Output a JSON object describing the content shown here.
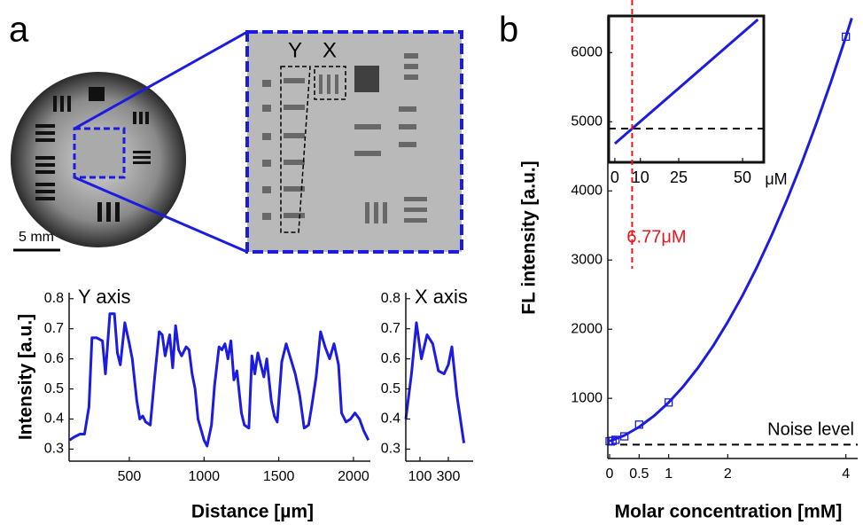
{
  "figure": {
    "panel_a": "a",
    "panel_b": "b",
    "scale_bar": "5 mm",
    "roi_y": "Y",
    "roi_x": "X"
  },
  "chart_data": [
    {
      "type": "line",
      "annotation": "Y axis",
      "xlabel": "Distance [µm]",
      "ylabel": "Intensity [a.u.]",
      "xlim": [
        97,
        2113
      ],
      "ylim": [
        0.26,
        0.82
      ],
      "xticks": [
        500,
        1000,
        1500,
        2000
      ],
      "yticks": [
        0.3,
        0.4,
        0.5,
        0.6,
        0.7,
        0.8
      ],
      "series": [
        {
          "color": "#1c1ce0",
          "x": [
            100,
            130,
            170,
            200,
            230,
            250,
            280,
            320,
            340,
            370,
            400,
            420,
            440,
            470,
            500,
            520,
            550,
            570,
            590,
            610,
            640,
            670,
            700,
            720,
            740,
            770,
            790,
            810,
            830,
            850,
            880,
            900,
            920,
            940,
            960,
            1000,
            1020,
            1050,
            1070,
            1100,
            1120,
            1140,
            1160,
            1180,
            1200,
            1220,
            1250,
            1270,
            1300,
            1320,
            1340,
            1360,
            1380,
            1400,
            1420,
            1450,
            1470,
            1490,
            1520,
            1550,
            1580,
            1610,
            1640,
            1670,
            1700,
            1720,
            1750,
            1780,
            1810,
            1840,
            1870,
            1900,
            1920,
            1950,
            1980,
            2010,
            2040,
            2070,
            2100
          ],
          "values": [
            0.33,
            0.34,
            0.35,
            0.35,
            0.44,
            0.67,
            0.67,
            0.66,
            0.55,
            0.75,
            0.75,
            0.62,
            0.58,
            0.72,
            0.65,
            0.6,
            0.46,
            0.4,
            0.41,
            0.39,
            0.38,
            0.54,
            0.69,
            0.68,
            0.61,
            0.68,
            0.57,
            0.71,
            0.63,
            0.61,
            0.64,
            0.63,
            0.55,
            0.5,
            0.4,
            0.33,
            0.31,
            0.38,
            0.51,
            0.64,
            0.63,
            0.65,
            0.6,
            0.66,
            0.53,
            0.56,
            0.42,
            0.38,
            0.37,
            0.61,
            0.55,
            0.62,
            0.58,
            0.54,
            0.6,
            0.46,
            0.41,
            0.39,
            0.59,
            0.65,
            0.6,
            0.55,
            0.48,
            0.37,
            0.38,
            0.44,
            0.54,
            0.69,
            0.64,
            0.6,
            0.65,
            0.58,
            0.42,
            0.39,
            0.4,
            0.42,
            0.4,
            0.36,
            0.33
          ]
        }
      ]
    },
    {
      "type": "line",
      "annotation": "X axis",
      "xlim": [
        0,
        475
      ],
      "ylim": [
        0.26,
        0.82
      ],
      "xticks": [
        100,
        300
      ],
      "yticks": [
        0.3,
        0.4,
        0.5,
        0.6,
        0.7,
        0.8
      ],
      "series": [
        {
          "color": "#1c1ce0",
          "x": [
            0,
            40,
            75,
            110,
            150,
            190,
            230,
            270,
            300,
            325,
            360,
            410
          ],
          "values": [
            0.4,
            0.55,
            0.72,
            0.6,
            0.68,
            0.65,
            0.56,
            0.55,
            0.58,
            0.64,
            0.48,
            0.32
          ]
        }
      ]
    },
    {
      "type": "line",
      "xlabel": "Molar concentration [mM]",
      "ylabel": "FL intensity [a.u.]",
      "xlim": [
        -0.03,
        4.2
      ],
      "ylim": [
        130,
        6530
      ],
      "xticks": [
        0,
        0.5,
        1,
        2,
        4
      ],
      "yticks": [
        1000,
        2000,
        3000,
        4000,
        5000,
        6000
      ],
      "hlines": [
        {
          "value": 330,
          "label": "Noise level"
        }
      ],
      "series": [
        {
          "color": "#1c1ce0",
          "x": [
            0,
            0.25,
            0.5,
            0.75,
            1,
            1.25,
            1.5,
            1.75,
            2,
            2.25,
            2.5,
            2.75,
            3,
            3.25,
            3.5,
            3.75,
            4,
            4.1
          ],
          "values": [
            380,
            464,
            585,
            744,
            940,
            1174,
            1446,
            1755,
            2102,
            2486,
            2908,
            3368,
            3865,
            4400,
            4972,
            5582,
            6230,
            6499
          ]
        },
        {
          "color": "#1c1ce0",
          "marker": "square",
          "x": [
            0,
            0.05,
            0.1,
            0.25,
            0.5,
            1,
            4
          ],
          "values": [
            380,
            385,
            400,
            450,
            620,
            940,
            6230
          ]
        }
      ]
    },
    {
      "type": "line",
      "frame": true,
      "xunit": "μM",
      "xlim": [
        -2.4,
        58.3
      ],
      "ylim": [
        292,
        457
      ],
      "xticks": [
        0,
        10,
        25,
        50
      ],
      "hlines": [
        {
          "value": 330
        }
      ],
      "vline": {
        "value": 6.77,
        "label": "6.77μM",
        "color": "#e8161b"
      },
      "series": [
        {
          "color": "#1c1ce0",
          "x": [
            0,
            56
          ],
          "values": [
            313,
            453
          ]
        }
      ]
    }
  ]
}
